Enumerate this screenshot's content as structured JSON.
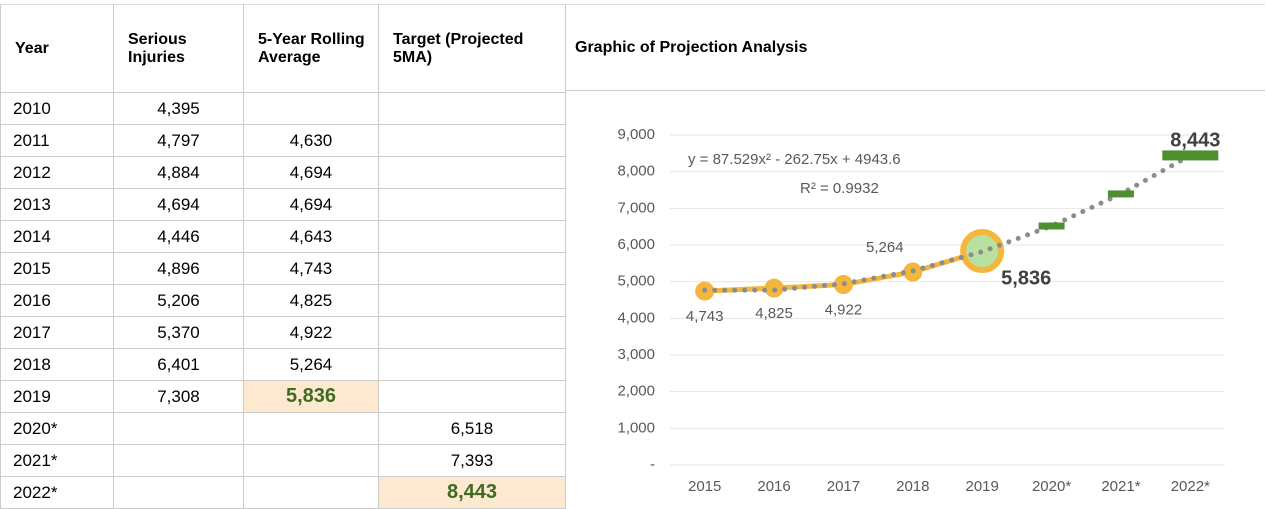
{
  "table": {
    "headers": [
      "Year",
      "Serious Injuries",
      "5-Year Rolling Average",
      "Target (Projected 5MA)"
    ],
    "rows": [
      [
        "2010",
        "4,395",
        null,
        null
      ],
      [
        "2011",
        "4,797",
        "4,630",
        null
      ],
      [
        "2012",
        "4,884",
        "4,694",
        null
      ],
      [
        "2013",
        "4,694",
        "4,694",
        null
      ],
      [
        "2014",
        "4,446",
        "4,643",
        null
      ],
      [
        "2015",
        "4,896",
        "4,743",
        null
      ],
      [
        "2016",
        "5,206",
        "4,825",
        null
      ],
      [
        "2017",
        "5,370",
        "4,922",
        null
      ],
      [
        "2018",
        "6,401",
        "5,264",
        null
      ],
      [
        "2019",
        "7,308",
        "5,836",
        null
      ],
      [
        "2020*",
        null,
        null,
        "6,518"
      ],
      [
        "2021*",
        null,
        null,
        "7,393"
      ],
      [
        "2022*",
        null,
        null,
        "8,443"
      ]
    ],
    "highlight": [
      [
        9,
        2
      ],
      [
        12,
        3
      ]
    ]
  },
  "chart_data": {
    "type": "line",
    "title": "Graphic of Projection Analysis",
    "annotations": [
      "y = 87.529x² - 262.75x + 4943.6",
      "R² = 0.9932"
    ],
    "categories": [
      "2015",
      "2016",
      "2017",
      "2018",
      "2019",
      "2020*",
      "2021*",
      "2022*"
    ],
    "series": [
      {
        "color": "#f4b63b",
        "values": [
          4743,
          4825,
          4922,
          5264,
          5836,
          null,
          null,
          null
        ],
        "value_labels": [
          "4,743",
          "4,825",
          "4,922",
          "5,264",
          "5,836",
          null,
          null,
          null
        ]
      },
      {
        "color": "#4f8f30",
        "values": [
          null,
          null,
          null,
          null,
          null,
          6518,
          7393,
          8443
        ],
        "value_labels": [
          null,
          null,
          null,
          null,
          null,
          null,
          null,
          "8,443"
        ]
      },
      {
        "color": "#8c8c8c",
        "values": [
          4768,
          4768,
          4943,
          5293,
          5818,
          6518,
          7393,
          8443
        ]
      }
    ],
    "ylim": [
      0,
      9000
    ],
    "yticks": [
      {
        "value": 0,
        "label": "-"
      },
      {
        "value": 1000,
        "label": "1,000"
      },
      {
        "value": 2000,
        "label": "2,000"
      },
      {
        "value": 3000,
        "label": "3,000"
      },
      {
        "value": 4000,
        "label": "4,000"
      },
      {
        "value": 5000,
        "label": "5,000"
      },
      {
        "value": 6000,
        "label": "6,000"
      },
      {
        "value": 7000,
        "label": "7,000"
      },
      {
        "value": 8000,
        "label": "8,000"
      },
      {
        "value": 9000,
        "label": "9,000"
      }
    ],
    "grid": true
  }
}
